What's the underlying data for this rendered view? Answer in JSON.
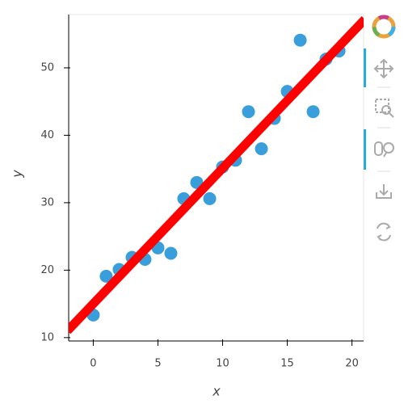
{
  "chart_data": {
    "type": "scatter",
    "x_label": "x",
    "y_label": "y",
    "x": [
      0,
      1,
      2,
      3,
      4,
      5,
      6,
      7,
      8,
      9,
      10,
      11,
      12,
      13,
      14,
      15,
      16,
      17,
      18,
      19
    ],
    "series": [
      {
        "color": "#3a9edb",
        "values": [
          13.35,
          19.1,
          20.1,
          21.9,
          21.6,
          23.3,
          22.5,
          30.6,
          33.0,
          30.6,
          35.3,
          36.3,
          43.5,
          38.0,
          42.5,
          46.5,
          54.1,
          43.5,
          51.3,
          52.5
        ]
      }
    ],
    "line": {
      "x": [
        -2,
        21
      ],
      "y": [
        11,
        57.2
      ],
      "color": "#ff0000"
    },
    "xlim": [
      -1.9,
      20.9
    ],
    "ylim": [
      9.5,
      57.9
    ],
    "xticks": [
      0,
      5,
      10,
      15,
      20
    ],
    "yticks": [
      10,
      20,
      30,
      40,
      50
    ]
  }
}
